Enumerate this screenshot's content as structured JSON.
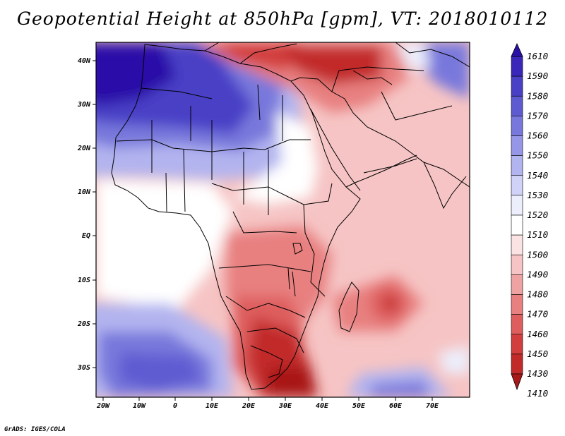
{
  "title": "Geopotential Height at 850hPa [gpm], VT: 2018010112",
  "footer": "GrADS: IGES/COLA",
  "lat_labels": [
    "40N",
    "30N",
    "20N",
    "10N",
    "EQ",
    "10S",
    "20S",
    "30S"
  ],
  "lon_labels": [
    "20W",
    "10W",
    "0",
    "10E",
    "20E",
    "30E",
    "40E",
    "50E",
    "60E",
    "70E"
  ],
  "colorbar": {
    "labels": [
      "1610",
      "1590",
      "1580",
      "1570",
      "1560",
      "1550",
      "1540",
      "1530",
      "1520",
      "1510",
      "1500",
      "1490",
      "1480",
      "1470",
      "1460",
      "1450",
      "1430",
      "1410"
    ],
    "colors": [
      "#2b10a8",
      "#3a27b9",
      "#4a40c6",
      "#5e5bd1",
      "#7878dc",
      "#9596e6",
      "#b2b4ef",
      "#d0d2f7",
      "#eceefc",
      "#ffffff",
      "#fbe3e3",
      "#f6c4c4",
      "#efa2a2",
      "#e88080",
      "#de5d5d",
      "#d23d3d",
      "#c22a2a",
      "#a91818"
    ]
  },
  "legend_levels": "1610 1590 1580 1570 1560 1550 1540 1530 1520 1510 1500 1490 1480 1470 1460 1450 1430 1410"
}
